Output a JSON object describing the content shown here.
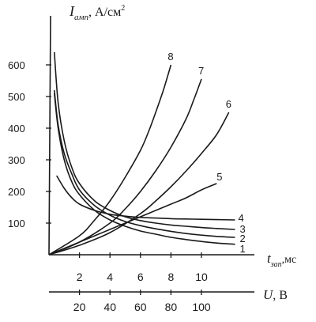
{
  "chart_data": {
    "type": "line",
    "ylabel": {
      "symbol": "I",
      "subscript": "амп",
      "unit": ", А/см",
      "unit_sup": "2"
    },
    "xlabel_top": {
      "symbol": "t",
      "subscript": "зап",
      "unit": ",мс"
    },
    "xlabel_bottom": {
      "symbol": "U",
      "unit": ", В"
    },
    "y_ticks": [
      "100",
      "200",
      "300",
      "400",
      "500",
      "600"
    ],
    "x_ticks_time": [
      "2",
      "4",
      "6",
      "8",
      "10"
    ],
    "x_ticks_voltage": [
      "20",
      "40",
      "60",
      "80",
      "100"
    ],
    "ylim": [
      0,
      650
    ],
    "xlim_time": [
      0,
      13
    ],
    "xlim_voltage": [
      0,
      130
    ],
    "grid": false,
    "series_time": [
      {
        "name": "1",
        "x": [
          0.35,
          0.6,
          1,
          1.5,
          2,
          3,
          4,
          5,
          6,
          7,
          8,
          9,
          10,
          11,
          12.2
        ],
        "y": [
          510,
          400,
          300,
          230,
          190,
          140,
          110,
          90,
          75,
          65,
          55,
          48,
          42,
          37,
          33
        ]
      },
      {
        "name": "2",
        "x": [
          0.35,
          0.6,
          1,
          1.5,
          2,
          3,
          4,
          5,
          6,
          7,
          8,
          9,
          10,
          11,
          12.2
        ],
        "y": [
          520,
          410,
          320,
          255,
          205,
          155,
          125,
          105,
          92,
          82,
          74,
          67,
          62,
          58,
          55
        ]
      },
      {
        "name": "3",
        "x": [
          0.35,
          0.6,
          1,
          1.5,
          2,
          3,
          4,
          5,
          6,
          7,
          8,
          9,
          10,
          11,
          12.2
        ],
        "y": [
          640,
          480,
          360,
          275,
          225,
          170,
          140,
          120,
          108,
          100,
          94,
          90,
          86,
          83,
          80
        ]
      },
      {
        "name": "4",
        "x": [
          0.5,
          1,
          1.5,
          2,
          3,
          4,
          5,
          6,
          7,
          8,
          9,
          10,
          11,
          12.2
        ],
        "y": [
          250,
          210,
          180,
          160,
          140,
          128,
          122,
          118,
          116,
          114,
          113,
          112,
          111,
          110
        ]
      }
    ],
    "series_voltage": [
      {
        "name": "5",
        "x": [
          0,
          20,
          40,
          60,
          80,
          90,
          100,
          110
        ],
        "y": [
          0,
          40,
          80,
          120,
          160,
          180,
          205,
          225
        ]
      },
      {
        "name": "6",
        "x": [
          0,
          20,
          40,
          60,
          70,
          80,
          90,
          100,
          110,
          118
        ],
        "y": [
          0,
          30,
          70,
          130,
          170,
          215,
          265,
          320,
          380,
          450
        ]
      },
      {
        "name": "7",
        "x": [
          0,
          20,
          40,
          50,
          60,
          70,
          80,
          90,
          95,
          100
        ],
        "y": [
          0,
          40,
          100,
          145,
          200,
          265,
          340,
          430,
          490,
          555
        ]
      },
      {
        "name": "8",
        "x": [
          0,
          20,
          30,
          40,
          50,
          60,
          65,
          70,
          75,
          80
        ],
        "y": [
          0,
          60,
          110,
          170,
          245,
          330,
          385,
          450,
          520,
          600
        ]
      }
    ]
  }
}
